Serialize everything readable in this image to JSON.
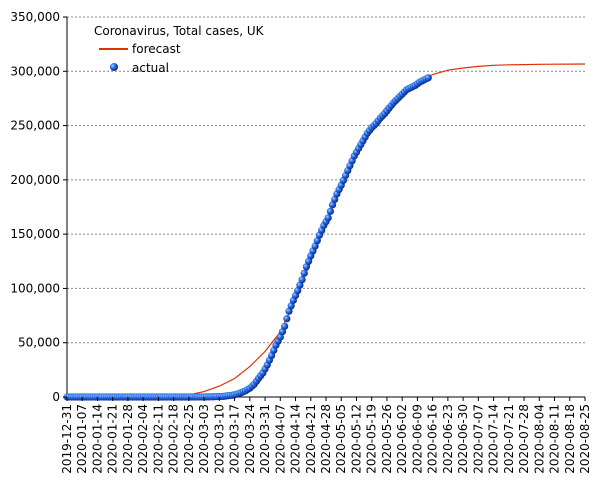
{
  "chart_data": {
    "type": "line",
    "title": "Coronavirus, Total cases, UK",
    "xlabel": "",
    "ylabel": "",
    "ylim": [
      0,
      350000
    ],
    "yticks": [
      0,
      50000,
      100000,
      150000,
      200000,
      250000,
      300000,
      350000
    ],
    "ytick_labels": [
      "0",
      "50,000",
      "100,000",
      "150,000",
      "200,000",
      "250,000",
      "300,000",
      "350,000"
    ],
    "xlim": [
      "2019-12-31",
      "2020-08-25"
    ],
    "xtick_labels": [
      "2019-12-31",
      "2020-01-07",
      "2020-01-14",
      "2020-01-21",
      "2020-01-28",
      "2020-02-04",
      "2020-02-11",
      "2020-02-18",
      "2020-02-25",
      "2020-03-03",
      "2020-03-10",
      "2020-03-17",
      "2020-03-24",
      "2020-03-31",
      "2020-04-07",
      "2020-04-14",
      "2020-04-21",
      "2020-04-28",
      "2020-05-05",
      "2020-05-12",
      "2020-05-19",
      "2020-05-26",
      "2020-06-02",
      "2020-06-09",
      "2020-06-16",
      "2020-06-23",
      "2020-06-30",
      "2020-07-07",
      "2020-07-14",
      "2020-07-21",
      "2020-07-28",
      "2020-08-04",
      "2020-08-11",
      "2020-08-18",
      "2020-08-25"
    ],
    "grid": "horizontal",
    "legend_position": "top-left",
    "colors": {
      "forecast": "#e03000",
      "actual": "#1f4fd8",
      "grid": "#888888"
    },
    "series": [
      {
        "name": "forecast",
        "style": "line",
        "x": [
          "2019-12-31",
          "2020-02-18",
          "2020-02-25",
          "2020-03-03",
          "2020-03-10",
          "2020-03-17",
          "2020-03-24",
          "2020-03-31",
          "2020-04-07",
          "2020-04-14",
          "2020-04-21",
          "2020-04-28",
          "2020-05-05",
          "2020-05-12",
          "2020-05-19",
          "2020-05-26",
          "2020-06-02",
          "2020-06-09",
          "2020-06-16",
          "2020-06-23",
          "2020-06-30",
          "2020-07-07",
          "2020-07-14",
          "2020-07-21",
          "2020-07-28",
          "2020-08-04",
          "2020-08-11",
          "2020-08-18",
          "2020-08-25"
        ],
        "values": [
          0,
          500,
          2000,
          5000,
          10000,
          17000,
          28000,
          42000,
          60000,
          90000,
          125000,
          160000,
          195000,
          225000,
          250000,
          268000,
          280000,
          290000,
          297000,
          301000,
          303000,
          304500,
          305500,
          306000,
          306200,
          306400,
          306500,
          306600,
          306700
        ]
      },
      {
        "name": "actual",
        "style": "markers",
        "x": [
          "2019-12-31",
          "2020-01-07",
          "2020-01-14",
          "2020-01-21",
          "2020-01-28",
          "2020-02-04",
          "2020-02-11",
          "2020-02-18",
          "2020-02-25",
          "2020-03-03",
          "2020-03-07",
          "2020-03-10",
          "2020-03-12",
          "2020-03-14",
          "2020-03-16",
          "2020-03-18",
          "2020-03-20",
          "2020-03-22",
          "2020-03-24",
          "2020-03-26",
          "2020-03-28",
          "2020-03-30",
          "2020-04-01",
          "2020-04-03",
          "2020-04-05",
          "2020-04-07",
          "2020-04-09",
          "2020-04-11",
          "2020-04-13",
          "2020-04-15",
          "2020-04-17",
          "2020-04-19",
          "2020-04-21",
          "2020-04-23",
          "2020-04-25",
          "2020-04-27",
          "2020-04-29",
          "2020-05-01",
          "2020-05-03",
          "2020-05-05",
          "2020-05-07",
          "2020-05-09",
          "2020-05-11",
          "2020-05-13",
          "2020-05-15",
          "2020-05-17",
          "2020-05-19",
          "2020-05-21",
          "2020-05-23",
          "2020-05-25",
          "2020-05-27",
          "2020-05-29",
          "2020-05-31",
          "2020-06-02",
          "2020-06-04",
          "2020-06-06",
          "2020-06-08",
          "2020-06-10",
          "2020-06-12",
          "2020-06-14"
        ],
        "values": [
          0,
          0,
          0,
          0,
          0,
          0,
          0,
          10,
          20,
          50,
          200,
          400,
          600,
          1200,
          1600,
          2600,
          4000,
          5700,
          8100,
          11700,
          17100,
          22200,
          29500,
          38200,
          47800,
          55200,
          65100,
          79000,
          89000,
          98000,
          108000,
          120000,
          130000,
          139000,
          149000,
          158000,
          165000,
          177000,
          187000,
          195000,
          204000,
          213000,
          222000,
          229000,
          236000,
          243000,
          248000,
          252000,
          257000,
          261000,
          266000,
          271000,
          275000,
          279000,
          283000,
          285000,
          287000,
          290000,
          292000,
          294000
        ]
      }
    ]
  }
}
